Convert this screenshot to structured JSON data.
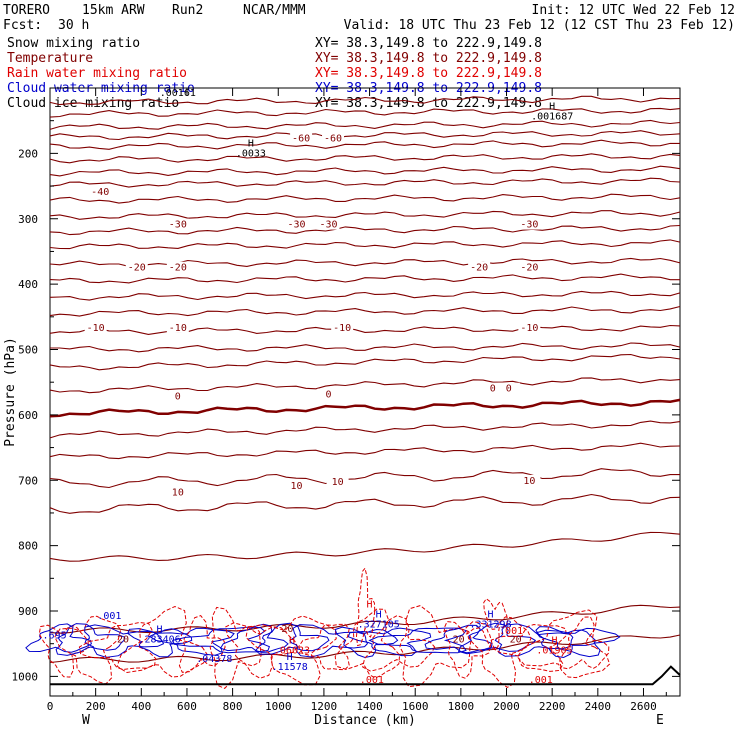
{
  "header": {
    "model": "TORERO",
    "resolution": "15km ARW",
    "run": "Run2",
    "org": "NCAR/MMM",
    "init": "Init: 12 UTC Wed 22 Feb 12",
    "fcst_label": "Fcst:",
    "fcst_value": "30 h",
    "valid": "Valid: 18 UTC Thu 23 Feb 12 (12 CST Thu 23 Feb 12)"
  },
  "colors": {
    "temperature": "#800000",
    "snow": "#000000",
    "rain": "#e00000",
    "cloud_water": "#0000cc",
    "cloud_ice": "#000000",
    "terrain": "#000000"
  },
  "chart_data": {
    "type": "contour",
    "title": "",
    "xlabel": "Distance (km)",
    "ylabel": "Pressure (hPa)",
    "xlim": [
      0,
      2760
    ],
    "ylim": [
      1030,
      100
    ],
    "x_ticks": [
      "0",
      "200",
      "400",
      "600",
      "800",
      "1000",
      "1200",
      "1400",
      "1600",
      "1800",
      "2000",
      "2200",
      "2400",
      "2600"
    ],
    "x_tick_values": [
      0,
      200,
      400,
      600,
      800,
      1000,
      1200,
      1400,
      1600,
      1800,
      2000,
      2200,
      2400,
      2600
    ],
    "y_ticks": [
      "200",
      "300",
      "400",
      "500",
      "600",
      "700",
      "800",
      "900",
      "1000"
    ],
    "y_tick_values": [
      200,
      300,
      400,
      500,
      600,
      700,
      800,
      900,
      1000
    ],
    "west_label": "W",
    "east_label": "E",
    "legend": [
      {
        "name": "Snow mixing ratio",
        "xy": "XY=  38.3,149.8 to 222.9,149.8",
        "key": "snow"
      },
      {
        "name": "Temperature",
        "xy": "XY=  38.3,149.8 to 222.9,149.8",
        "key": "temperature"
      },
      {
        "name": "Rain water mixing ratio",
        "xy": "XY=  38.3,149.8 to 222.9,149.8",
        "key": "rain"
      },
      {
        "name": "Cloud water mixing ratio",
        "xy": "XY=  38.3,149.8 to 222.9,149.8",
        "key": "cloud_water"
      },
      {
        "name": "Cloud ice mixing ratio",
        "xy": "XY=  38.3,149.8 to 222.9,149.8",
        "key": "cloud_ice"
      }
    ],
    "temperature_isotherms_hpa_at_x0": [
      122,
      140,
      160,
      175,
      190,
      210,
      230,
      248,
      272,
      297,
      320,
      343,
      370,
      395,
      420,
      445,
      473,
      500,
      528,
      563,
      598,
      631,
      665,
      705,
      745,
      820,
      930,
      975
    ],
    "isotherm_labels": [
      {
        "text": "-60",
        "x": 1100,
        "p": 180
      },
      {
        "text": "-60",
        "x": 1240,
        "p": 180
      },
      {
        "text": "-40",
        "x": 220,
        "p": 262
      },
      {
        "text": "-30",
        "x": 560,
        "p": 312
      },
      {
        "text": "-30",
        "x": 1080,
        "p": 312
      },
      {
        "text": "-30",
        "x": 1220,
        "p": 312
      },
      {
        "text": "-30",
        "x": 2100,
        "p": 312
      },
      {
        "text": "-20",
        "x": 380,
        "p": 378
      },
      {
        "text": "-20",
        "x": 560,
        "p": 378
      },
      {
        "text": "-20",
        "x": 1880,
        "p": 378
      },
      {
        "text": "-20",
        "x": 2100,
        "p": 378
      },
      {
        "text": "-10",
        "x": 200,
        "p": 470
      },
      {
        "text": "-10",
        "x": 560,
        "p": 470
      },
      {
        "text": "-10",
        "x": 1280,
        "p": 470
      },
      {
        "text": "-10",
        "x": 2100,
        "p": 470
      },
      {
        "text": "0",
        "x": 560,
        "p": 575
      },
      {
        "text": "0",
        "x": 1220,
        "p": 572
      },
      {
        "text": "0",
        "x": 1940,
        "p": 563
      },
      {
        "text": "0",
        "x": 2010,
        "p": 563
      },
      {
        "text": "10",
        "x": 560,
        "p": 722
      },
      {
        "text": "10",
        "x": 1080,
        "p": 712
      },
      {
        "text": "10",
        "x": 1260,
        "p": 706
      },
      {
        "text": "10",
        "x": 2100,
        "p": 704
      }
    ],
    "extrema_labels": [
      {
        "mark": "H",
        "value": ".001687",
        "x": 2200,
        "p": 148,
        "key": "snow"
      },
      {
        "mark": "H",
        "value": ".0033",
        "x": 880,
        "p": 205,
        "key": "snow"
      },
      {
        "mark": "H",
        "value": "",
        "x": 1400,
        "p": 910,
        "key": "rain"
      },
      {
        "mark": "H",
        "value": ".327105",
        "x": 1440,
        "p": 925,
        "key": "cloud_water"
      },
      {
        "mark": "H",
        "value": ".331298",
        "x": 1930,
        "p": 925,
        "key": "cloud_water"
      },
      {
        "mark": "H",
        "value": ".283406",
        "x": 480,
        "p": 948,
        "key": "cloud_water"
      },
      {
        "mark": "H",
        "value": ".06023",
        "x": 1060,
        "p": 965,
        "key": "rain"
      },
      {
        "mark": "H",
        "value": ".01905",
        "x": 2210,
        "p": 965,
        "key": "rain"
      },
      {
        "mark": "H",
        "value": ".11578",
        "x": 1050,
        "p": 990,
        "key": "cloud_water"
      },
      {
        "mark": "",
        "value": ".04378",
        "x": 720,
        "p": 978,
        "key": "cloud_water"
      },
      {
        "mark": "",
        "value": ".001",
        "x": 260,
        "p": 912,
        "key": "cloud_water"
      },
      {
        "mark": "",
        "value": ".695",
        "x": 20,
        "p": 942,
        "key": "cloud_water"
      },
      {
        "mark": "",
        "value": ".00161",
        "x": 560,
        "p": 112,
        "key": "snow"
      },
      {
        "mark": "",
        "value": "20",
        "x": 1040,
        "p": 932,
        "key": "temperature"
      },
      {
        "mark": "",
        "value": "20",
        "x": 320,
        "p": 948,
        "key": "temperature"
      },
      {
        "mark": "",
        "value": "20",
        "x": 1790,
        "p": 948,
        "key": "temperature"
      },
      {
        "mark": "",
        "value": "20",
        "x": 2040,
        "p": 948,
        "key": "temperature"
      },
      {
        "mark": "",
        "value": ".001",
        "x": 1410,
        "p": 1010,
        "key": "rain"
      },
      {
        "mark": "",
        "value": ".001",
        "x": 2150,
        "p": 1010,
        "key": "rain"
      },
      {
        "mark": "",
        "value": ".001",
        "x": 2020,
        "p": 935,
        "key": "rain"
      }
    ],
    "terrain": {
      "x": [
        0,
        2640,
        2680,
        2720,
        2760
      ],
      "p": [
        1012,
        1012,
        1000,
        985,
        998
      ]
    }
  }
}
